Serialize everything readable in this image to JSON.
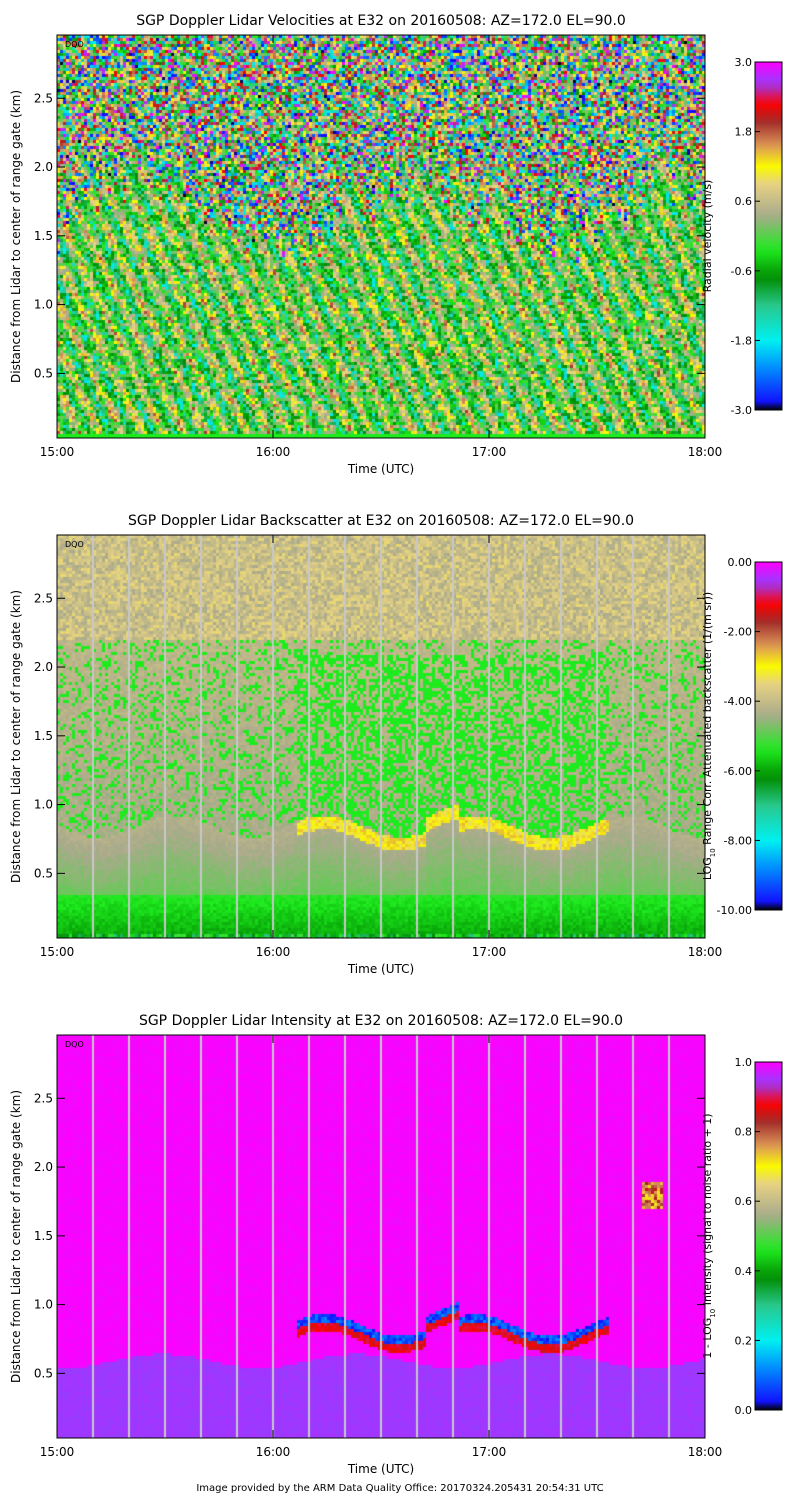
{
  "chart_data": [
    {
      "type": "heatmap",
      "title": "SGP Doppler Lidar Velocities at E32 on 20160508: AZ=172.0 EL=90.0",
      "xlabel": "Time (UTC)",
      "ylabel": "Distance from Lidar to center of range gate (km)",
      "x_ticks": [
        "15:00",
        "16:00",
        "17:00",
        "18:00"
      ],
      "xlim_hours": [
        15,
        18
      ],
      "y_ticks": [
        "0.5",
        "1.0",
        "1.5",
        "2.0",
        "2.5"
      ],
      "ylim": [
        0.03,
        2.96
      ],
      "corner_label": "DQO",
      "colorbar": {
        "label": "Radial velocity (m/s)",
        "label_sub": "",
        "label_rest": "",
        "range": [
          -3.0,
          3.0
        ],
        "ticks": [
          "3.0",
          "1.8",
          "0.6",
          "-0.6",
          "-1.8",
          "-3.0"
        ]
      },
      "mixed_layer_top_km": [
        1.9,
        1.7,
        1.8,
        1.6,
        1.7,
        1.5,
        1.6,
        1.8,
        1.9
      ],
      "scan_gap_lines": false
    },
    {
      "type": "heatmap",
      "title": "SGP Doppler Lidar Backscatter at E32 on 20160508: AZ=172.0 EL=90.0",
      "xlabel": "Time (UTC)",
      "ylabel": "Distance from Lidar to center of range gate (km)",
      "x_ticks": [
        "15:00",
        "16:00",
        "17:00",
        "18:00"
      ],
      "xlim_hours": [
        15,
        18
      ],
      "y_ticks": [
        "0.5",
        "1.0",
        "1.5",
        "2.0",
        "2.5"
      ],
      "ylim": [
        0.03,
        2.96
      ],
      "corner_label": "DQO",
      "colorbar": {
        "label": "LOG",
        "label_sub": "10",
        "label_rest": " Range Corr. Attenuated backscatter (1/(m sr))",
        "range": [
          -10.0,
          0.0
        ],
        "ticks": [
          "0.00",
          "-2.00",
          "-4.00",
          "-6.00",
          "-8.00",
          "-10.00"
        ]
      },
      "cloud_base_km": {
        "start_hours": 16.1,
        "end_hours": 17.55,
        "height": 0.8
      },
      "scan_gap_lines": true
    },
    {
      "type": "heatmap",
      "title": "SGP Doppler Lidar Intensity at E32 on 20160508: AZ=172.0 EL=90.0",
      "xlabel": "Time (UTC)",
      "ylabel": "Distance from Lidar to center of range gate (km)",
      "x_ticks": [
        "15:00",
        "16:00",
        "17:00",
        "18:00"
      ],
      "xlim_hours": [
        15,
        18
      ],
      "y_ticks": [
        "0.5",
        "1.0",
        "1.5",
        "2.0",
        "2.5"
      ],
      "ylim": [
        0.03,
        2.96
      ],
      "corner_label": "DQO",
      "colorbar": {
        "label": "1 - LOG",
        "label_sub": "10",
        "label_rest": " Intensity (signal to noise ratio + 1)",
        "range": [
          0.0,
          1.0
        ],
        "ticks": [
          "1.0",
          "0.8",
          "0.6",
          "0.4",
          "0.2",
          "0.0"
        ]
      },
      "cloud_base_km": {
        "start_hours": 16.1,
        "end_hours": 17.55,
        "height": 0.8
      },
      "scan_gap_lines": true
    }
  ],
  "footer": "Image provided by the ARM Data Quality Office: 20170324.205431 20:54:31 UTC"
}
